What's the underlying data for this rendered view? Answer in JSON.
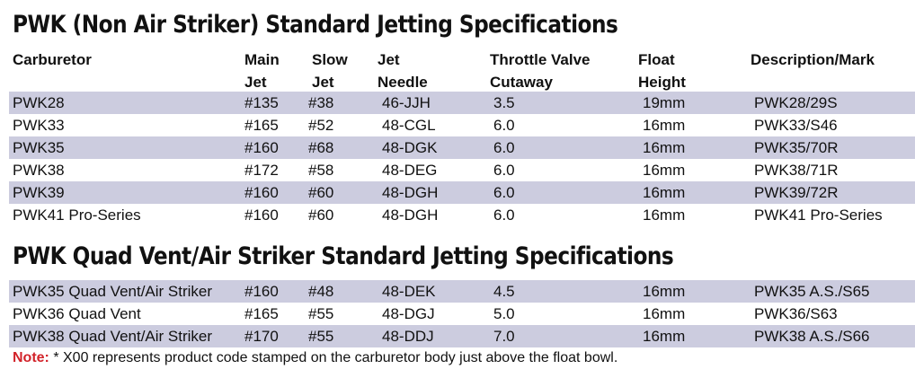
{
  "section1": {
    "title": "PWK (Non Air Striker) Standard Jetting Specifications",
    "headers": [
      {
        "line1": "Carburetor",
        "line2": ""
      },
      {
        "line1": "Main",
        "line2": "Jet"
      },
      {
        "line1": "Slow",
        "line2": "Jet"
      },
      {
        "line1": "Jet",
        "line2": "Needle"
      },
      {
        "line1": "Throttle Valve",
        "line2": "Cutaway"
      },
      {
        "line1": "Float",
        "line2": "Height"
      },
      {
        "line1": "Description/Mark",
        "line2": ""
      }
    ],
    "rows": [
      {
        "carb": "PWK28",
        "main": "#135",
        "slow": "#38",
        "needle": "46-JJH",
        "cutaway": "3.5",
        "float": "19mm",
        "desc": "PWK28/29S"
      },
      {
        "carb": "PWK33",
        "main": "#165",
        "slow": "#52",
        "needle": "48-CGL",
        "cutaway": "6.0",
        "float": "16mm",
        "desc": "PWK33/S46"
      },
      {
        "carb": "PWK35",
        "main": "#160",
        "slow": "#68",
        "needle": "48-DGK",
        "cutaway": "6.0",
        "float": "16mm",
        "desc": "PWK35/70R"
      },
      {
        "carb": "PWK38",
        "main": "#172",
        "slow": "#58",
        "needle": "48-DEG",
        "cutaway": "6.0",
        "float": "16mm",
        "desc": "PWK38/71R"
      },
      {
        "carb": "PWK39",
        "main": "#160",
        "slow": "#60",
        "needle": "48-DGH",
        "cutaway": "6.0",
        "float": "16mm",
        "desc": "PWK39/72R"
      },
      {
        "carb": "PWK41 Pro-Series",
        "main": "#160",
        "slow": "#60",
        "needle": "48-DGH",
        "cutaway": "6.0",
        "float": "16mm",
        "desc": "PWK41 Pro-Series"
      }
    ]
  },
  "section2": {
    "title": "PWK Quad Vent/Air Striker Standard Jetting Specifications",
    "rows": [
      {
        "carb": "PWK35 Quad Vent/Air Striker",
        "main": "#160",
        "slow": "#48",
        "needle": "48-DEK",
        "cutaway": "4.5",
        "float": "16mm",
        "desc": "PWK35 A.S./S65"
      },
      {
        "carb": "PWK36 Quad Vent",
        "main": "#165",
        "slow": "#55",
        "needle": "48-DGJ",
        "cutaway": "5.0",
        "float": "16mm",
        "desc": "PWK36/S63"
      },
      {
        "carb": "PWK38 Quad Vent/Air Striker",
        "main": "#170",
        "slow": "#55",
        "needle": "48-DDJ",
        "cutaway": "7.0",
        "float": "16mm",
        "desc": "PWK38 A.S./S66"
      }
    ]
  },
  "note": {
    "label": "Note:",
    "text": " * X00 represents product code stamped on the carburetor body just above the float bowl."
  },
  "colors": {
    "row_shade": "#ccccdf",
    "note_label": "#d2232a"
  }
}
